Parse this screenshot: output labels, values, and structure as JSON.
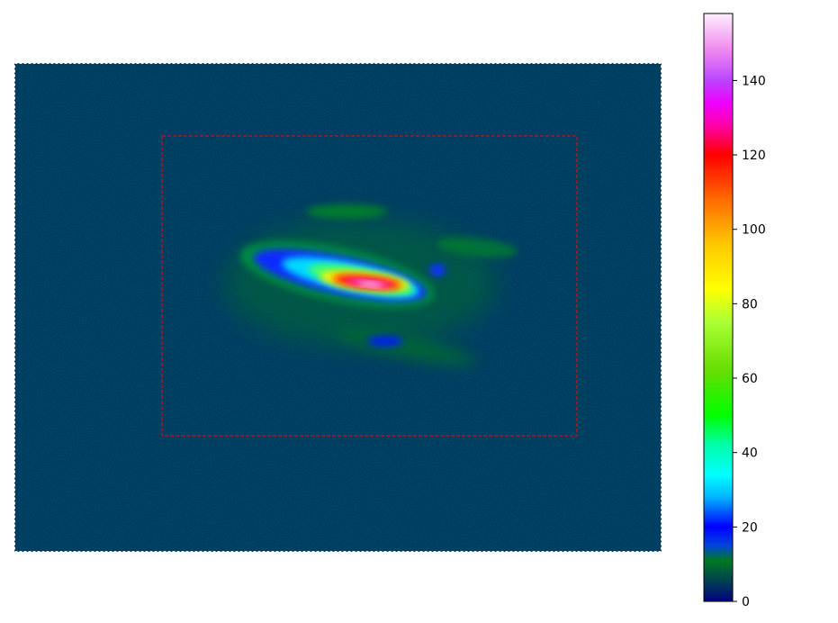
{
  "chart_data": {
    "type": "heatmap",
    "title": "",
    "xlabel": "",
    "ylabel": "",
    "axes_visible": false,
    "colormap": {
      "name": "gist_ncar-like",
      "range": [
        0,
        158
      ],
      "stops": [
        {
          "value": 0,
          "color": "#000080"
        },
        {
          "value": 5,
          "color": "#003a55"
        },
        {
          "value": 11,
          "color": "#007a20"
        },
        {
          "value": 15,
          "color": "#0044dd"
        },
        {
          "value": 20,
          "color": "#0000ff"
        },
        {
          "value": 28,
          "color": "#00b4ff"
        },
        {
          "value": 34,
          "color": "#00ffff"
        },
        {
          "value": 42,
          "color": "#00ffaa"
        },
        {
          "value": 50,
          "color": "#00ff00"
        },
        {
          "value": 62,
          "color": "#66dd00"
        },
        {
          "value": 75,
          "color": "#aaff33"
        },
        {
          "value": 84,
          "color": "#ffff00"
        },
        {
          "value": 96,
          "color": "#ffc800"
        },
        {
          "value": 108,
          "color": "#ff6a00"
        },
        {
          "value": 120,
          "color": "#ff0000"
        },
        {
          "value": 128,
          "color": "#ff00aa"
        },
        {
          "value": 134,
          "color": "#ee00ff"
        },
        {
          "value": 140,
          "color": "#bb44ff"
        },
        {
          "value": 148,
          "color": "#ee88ee"
        },
        {
          "value": 158,
          "color": "#ffeeff"
        }
      ]
    },
    "background_value": 4,
    "peak_value": 150,
    "colorbar": {
      "ticks": [
        0,
        20,
        40,
        60,
        80,
        100,
        120,
        140
      ],
      "tick_labels": [
        "0",
        "20",
        "40",
        "60",
        "80",
        "100",
        "120",
        "140"
      ]
    },
    "roi": {
      "style": "dashed",
      "color": "#ff0000"
    },
    "image_border_color": "#ffffff"
  }
}
